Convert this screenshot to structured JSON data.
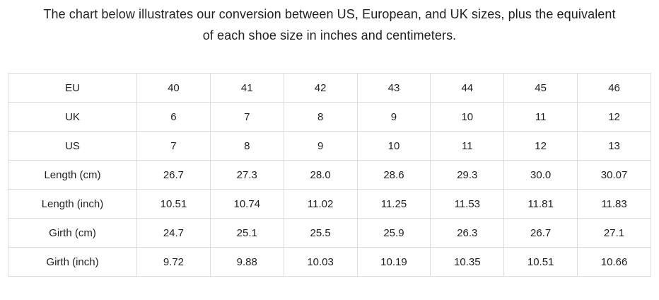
{
  "page": {
    "title_line1": "The chart below illustrates our conversion between US, European, and UK sizes, plus the equivalent",
    "title_line2": "of each shoe size in inches and centimeters."
  },
  "colors": {
    "background": "#ffffff",
    "text": "#1f1f1f",
    "table_border": "#dcdcdc"
  },
  "table": {
    "rows": [
      {
        "label": "EU",
        "values": [
          "40",
          "41",
          "42",
          "43",
          "44",
          "45",
          "46"
        ]
      },
      {
        "label": "UK",
        "values": [
          "6",
          "7",
          "8",
          "9",
          "10",
          "11",
          "12"
        ]
      },
      {
        "label": "US",
        "values": [
          "7",
          "8",
          "9",
          "10",
          "11",
          "12",
          "13"
        ]
      },
      {
        "label": "Length (cm)",
        "values": [
          "26.7",
          "27.3",
          "28.0",
          "28.6",
          "29.3",
          "30.0",
          "30.07"
        ]
      },
      {
        "label": "Length (inch)",
        "values": [
          "10.51",
          "10.74",
          "11.02",
          "11.25",
          "11.53",
          "11.81",
          "11.83"
        ]
      },
      {
        "label": "Girth (cm)",
        "values": [
          "24.7",
          "25.1",
          "25.5",
          "25.9",
          "26.3",
          "26.7",
          "27.1"
        ]
      },
      {
        "label": "Girth (inch)",
        "values": [
          "9.72",
          "9.88",
          "10.03",
          "10.19",
          "10.35",
          "10.51",
          "10.66"
        ]
      }
    ]
  }
}
